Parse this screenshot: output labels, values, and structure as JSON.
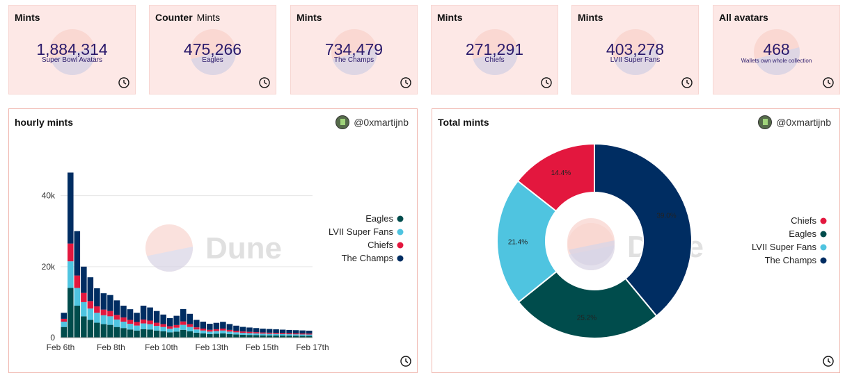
{
  "counters": [
    {
      "title": "Mints",
      "subtitle": "",
      "value": "1,884,314",
      "label": "Super Bowl Avatars"
    },
    {
      "title": "Counter",
      "subtitle": "Mints",
      "value": "475,266",
      "label": "Eagles"
    },
    {
      "title": "Mints",
      "subtitle": "",
      "value": "734,479",
      "label": "The Champs"
    },
    {
      "title": "Mints",
      "subtitle": "",
      "value": "271,291",
      "label": "Chiefs"
    },
    {
      "title": "Mints",
      "subtitle": "",
      "value": "403,278",
      "label": "LVII Super Fans"
    },
    {
      "title": "All avatars",
      "subtitle": "",
      "value": "468",
      "label": "Wallets own whole collection"
    }
  ],
  "hourly_panel": {
    "title": "hourly mints",
    "author": "@0xmartijnb",
    "watermark": "Dune"
  },
  "total_panel": {
    "title": "Total mints",
    "author": "@0xmartijnb",
    "watermark": "Dune"
  },
  "colors": {
    "eagles": "#004c4c",
    "superfans": "#4fc4e0",
    "chiefs": "#e3173e",
    "champs": "#002d62"
  },
  "chart_data": [
    {
      "type": "bar",
      "title": "hourly mints",
      "stacked": true,
      "xlabel": "",
      "ylabel": "",
      "ylim": [
        0,
        55000
      ],
      "yticks": [
        0,
        20000,
        40000
      ],
      "ytick_labels": [
        "0",
        "20k",
        "40k"
      ],
      "xtick_labels": [
        "Feb 6th",
        "Feb 8th",
        "Feb 10th",
        "Feb 13th",
        "Feb 15th",
        "Feb 17th"
      ],
      "legend": [
        "Eagles",
        "LVII Super Fans",
        "Chiefs",
        "The Champs"
      ],
      "series": [
        {
          "name": "Eagles",
          "values": [
            3000,
            14000,
            9000,
            6000,
            5000,
            4200,
            3800,
            3600,
            3000,
            2700,
            2300,
            2000,
            2400,
            2300,
            2000,
            1800,
            1500,
            1700,
            2200,
            1800,
            1400,
            1200,
            1000,
            1100,
            1200,
            1000,
            900,
            800,
            750,
            700,
            650,
            620,
            600,
            580,
            560,
            540,
            520,
            500
          ]
        },
        {
          "name": "LVII Super Fans",
          "values": [
            1500,
            7500,
            5000,
            4000,
            3200,
            2800,
            2500,
            2400,
            2100,
            1800,
            1600,
            1400,
            1600,
            1500,
            1300,
            1200,
            1000,
            1100,
            1400,
            1200,
            900,
            800,
            700,
            750,
            800,
            700,
            600,
            550,
            520,
            500,
            480,
            460,
            440,
            420,
            400,
            390,
            380,
            370
          ]
        },
        {
          "name": "Chiefs",
          "values": [
            800,
            5000,
            3500,
            2600,
            2100,
            1800,
            1600,
            1500,
            1300,
            1200,
            1100,
            1000,
            1100,
            1000,
            900,
            800,
            700,
            750,
            950,
            800,
            600,
            550,
            500,
            520,
            550,
            480,
            420,
            380,
            360,
            340,
            320,
            310,
            300,
            290,
            280,
            270,
            260,
            250
          ]
        },
        {
          "name": "The Champs",
          "values": [
            1700,
            20000,
            12500,
            7400,
            6700,
            5100,
            4600,
            4500,
            4100,
            3300,
            3000,
            2600,
            3900,
            3700,
            3300,
            2700,
            2300,
            2600,
            3500,
            2900,
            2100,
            1950,
            1700,
            1800,
            1900,
            1650,
            1450,
            1300,
            1220,
            1150,
            1080,
            1040,
            1000,
            960,
            930,
            900,
            870,
            840
          ]
        }
      ]
    },
    {
      "type": "pie",
      "title": "Total mints",
      "donut": true,
      "legend": [
        "Chiefs",
        "Eagles",
        "LVII Super Fans",
        "The Champs"
      ],
      "slices": [
        {
          "name": "The Champs",
          "value": 39.0,
          "label": "39.0%"
        },
        {
          "name": "Eagles",
          "value": 25.2,
          "label": "25.2%"
        },
        {
          "name": "LVII Super Fans",
          "value": 21.4,
          "label": "21.4%"
        },
        {
          "name": "Chiefs",
          "value": 14.4,
          "label": "14.4%"
        }
      ]
    }
  ]
}
